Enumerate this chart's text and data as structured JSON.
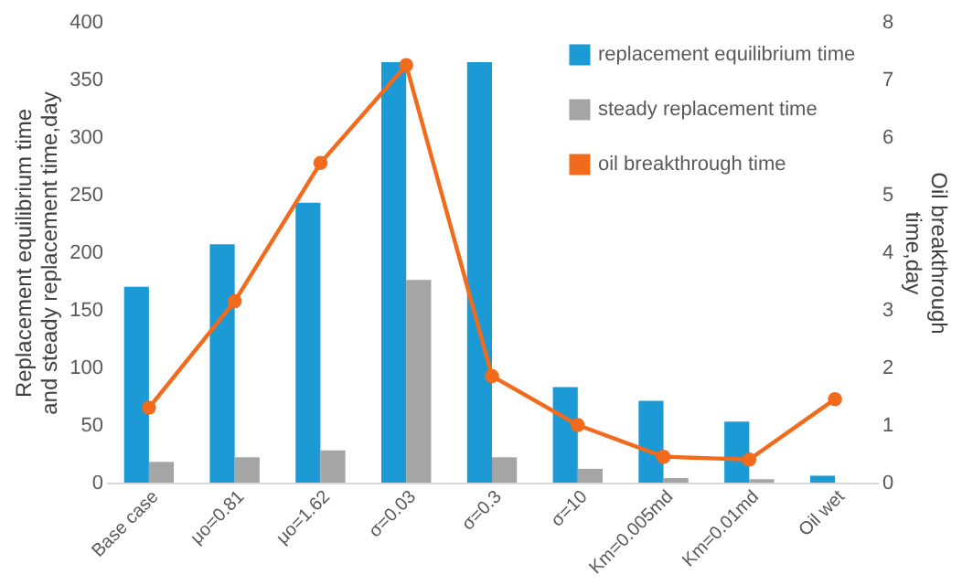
{
  "chart_data": {
    "type": "bar",
    "xlabel": null,
    "categories": [
      "Base case",
      "μo=0.81",
      "μo=1.62",
      "σ=0.03",
      "σ=0.3",
      "σ=10",
      "Km=0.005md",
      "Km=0.01md",
      "Oil wet"
    ],
    "series": [
      {
        "name": "replacement equilibrium time",
        "color": "#1b9ad6",
        "values": [
          170,
          207,
          243,
          365,
          365,
          83,
          71,
          53,
          6
        ]
      },
      {
        "name": "steady replacement time",
        "color": "#a5a5a5",
        "values": [
          18,
          22,
          28,
          176,
          22,
          12,
          4,
          3,
          0
        ]
      },
      {
        "name": "oil breakthrough time",
        "type": "line",
        "axis": "y2",
        "color": "#f26a1b",
        "values": [
          1.3,
          3.15,
          5.55,
          7.25,
          1.85,
          1.0,
          0.45,
          0.4,
          1.45
        ]
      }
    ],
    "ylabel": "Replacement equilibrium time and steady replacement time,day",
    "y2label": "Oil breakthrough time,day",
    "ylim": [
      0,
      400
    ],
    "yticks": [
      0,
      50,
      100,
      150,
      200,
      250,
      300,
      350,
      400
    ],
    "y2lim": [
      0,
      8
    ],
    "y2ticks": [
      0,
      1,
      2,
      3,
      4,
      5,
      6,
      7,
      8
    ],
    "marker": "circle",
    "legend": "top right",
    "grid": false
  }
}
